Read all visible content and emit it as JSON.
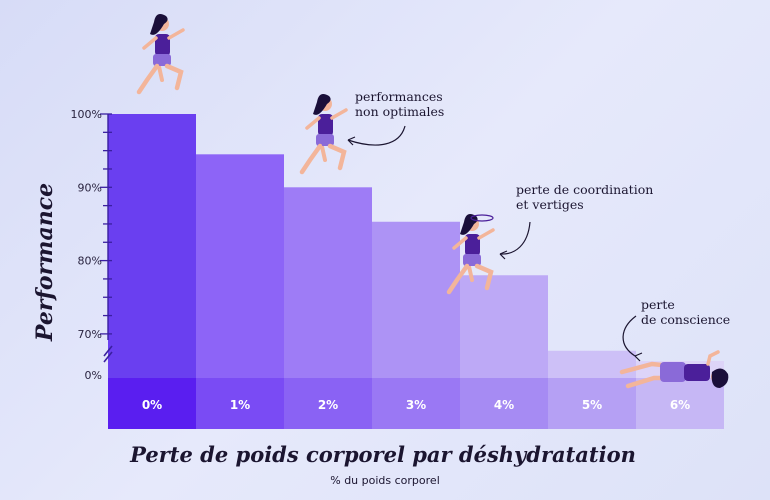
{
  "chart_data": {
    "type": "bar",
    "categories": [
      "0%",
      "1%",
      "2%",
      "3%",
      "4%",
      "5%",
      "6%"
    ],
    "values": [
      100,
      94.5,
      90,
      85.3,
      78,
      67.7,
      66.3
    ],
    "ylabel": "Performance",
    "xlabel": "Perte de poids corporel par déshydratation",
    "xsublabel": "% du poids corporel",
    "y_ticks": [
      "100%",
      "90%",
      "80%",
      "70%",
      "0%"
    ],
    "y_tick_values": [
      100,
      90,
      80,
      70
    ],
    "y_zero_label": "0%",
    "ylim": [
      65,
      100
    ],
    "axis_break": true,
    "colors": [
      "#6a3ff0",
      "#8d64f7",
      "#9e7cf6",
      "#ad93f5",
      "#bda9f6",
      "#cdc0f7",
      "#ddd4f8"
    ],
    "label_band_colors": [
      "#5a1ef0",
      "#7a4bf4",
      "#8a62f4",
      "#9a78f4",
      "#a68bf3",
      "#b5a0f4",
      "#c6b7f5"
    ],
    "annotations": [
      {
        "lines": [
          "performances",
          "non optimales"
        ],
        "bar": 2
      },
      {
        "lines": [
          "perte de coordination",
          "et vertiges"
        ],
        "bar": 4
      },
      {
        "lines": [
          "perte",
          "de conscience"
        ],
        "bar": 5
      }
    ]
  }
}
